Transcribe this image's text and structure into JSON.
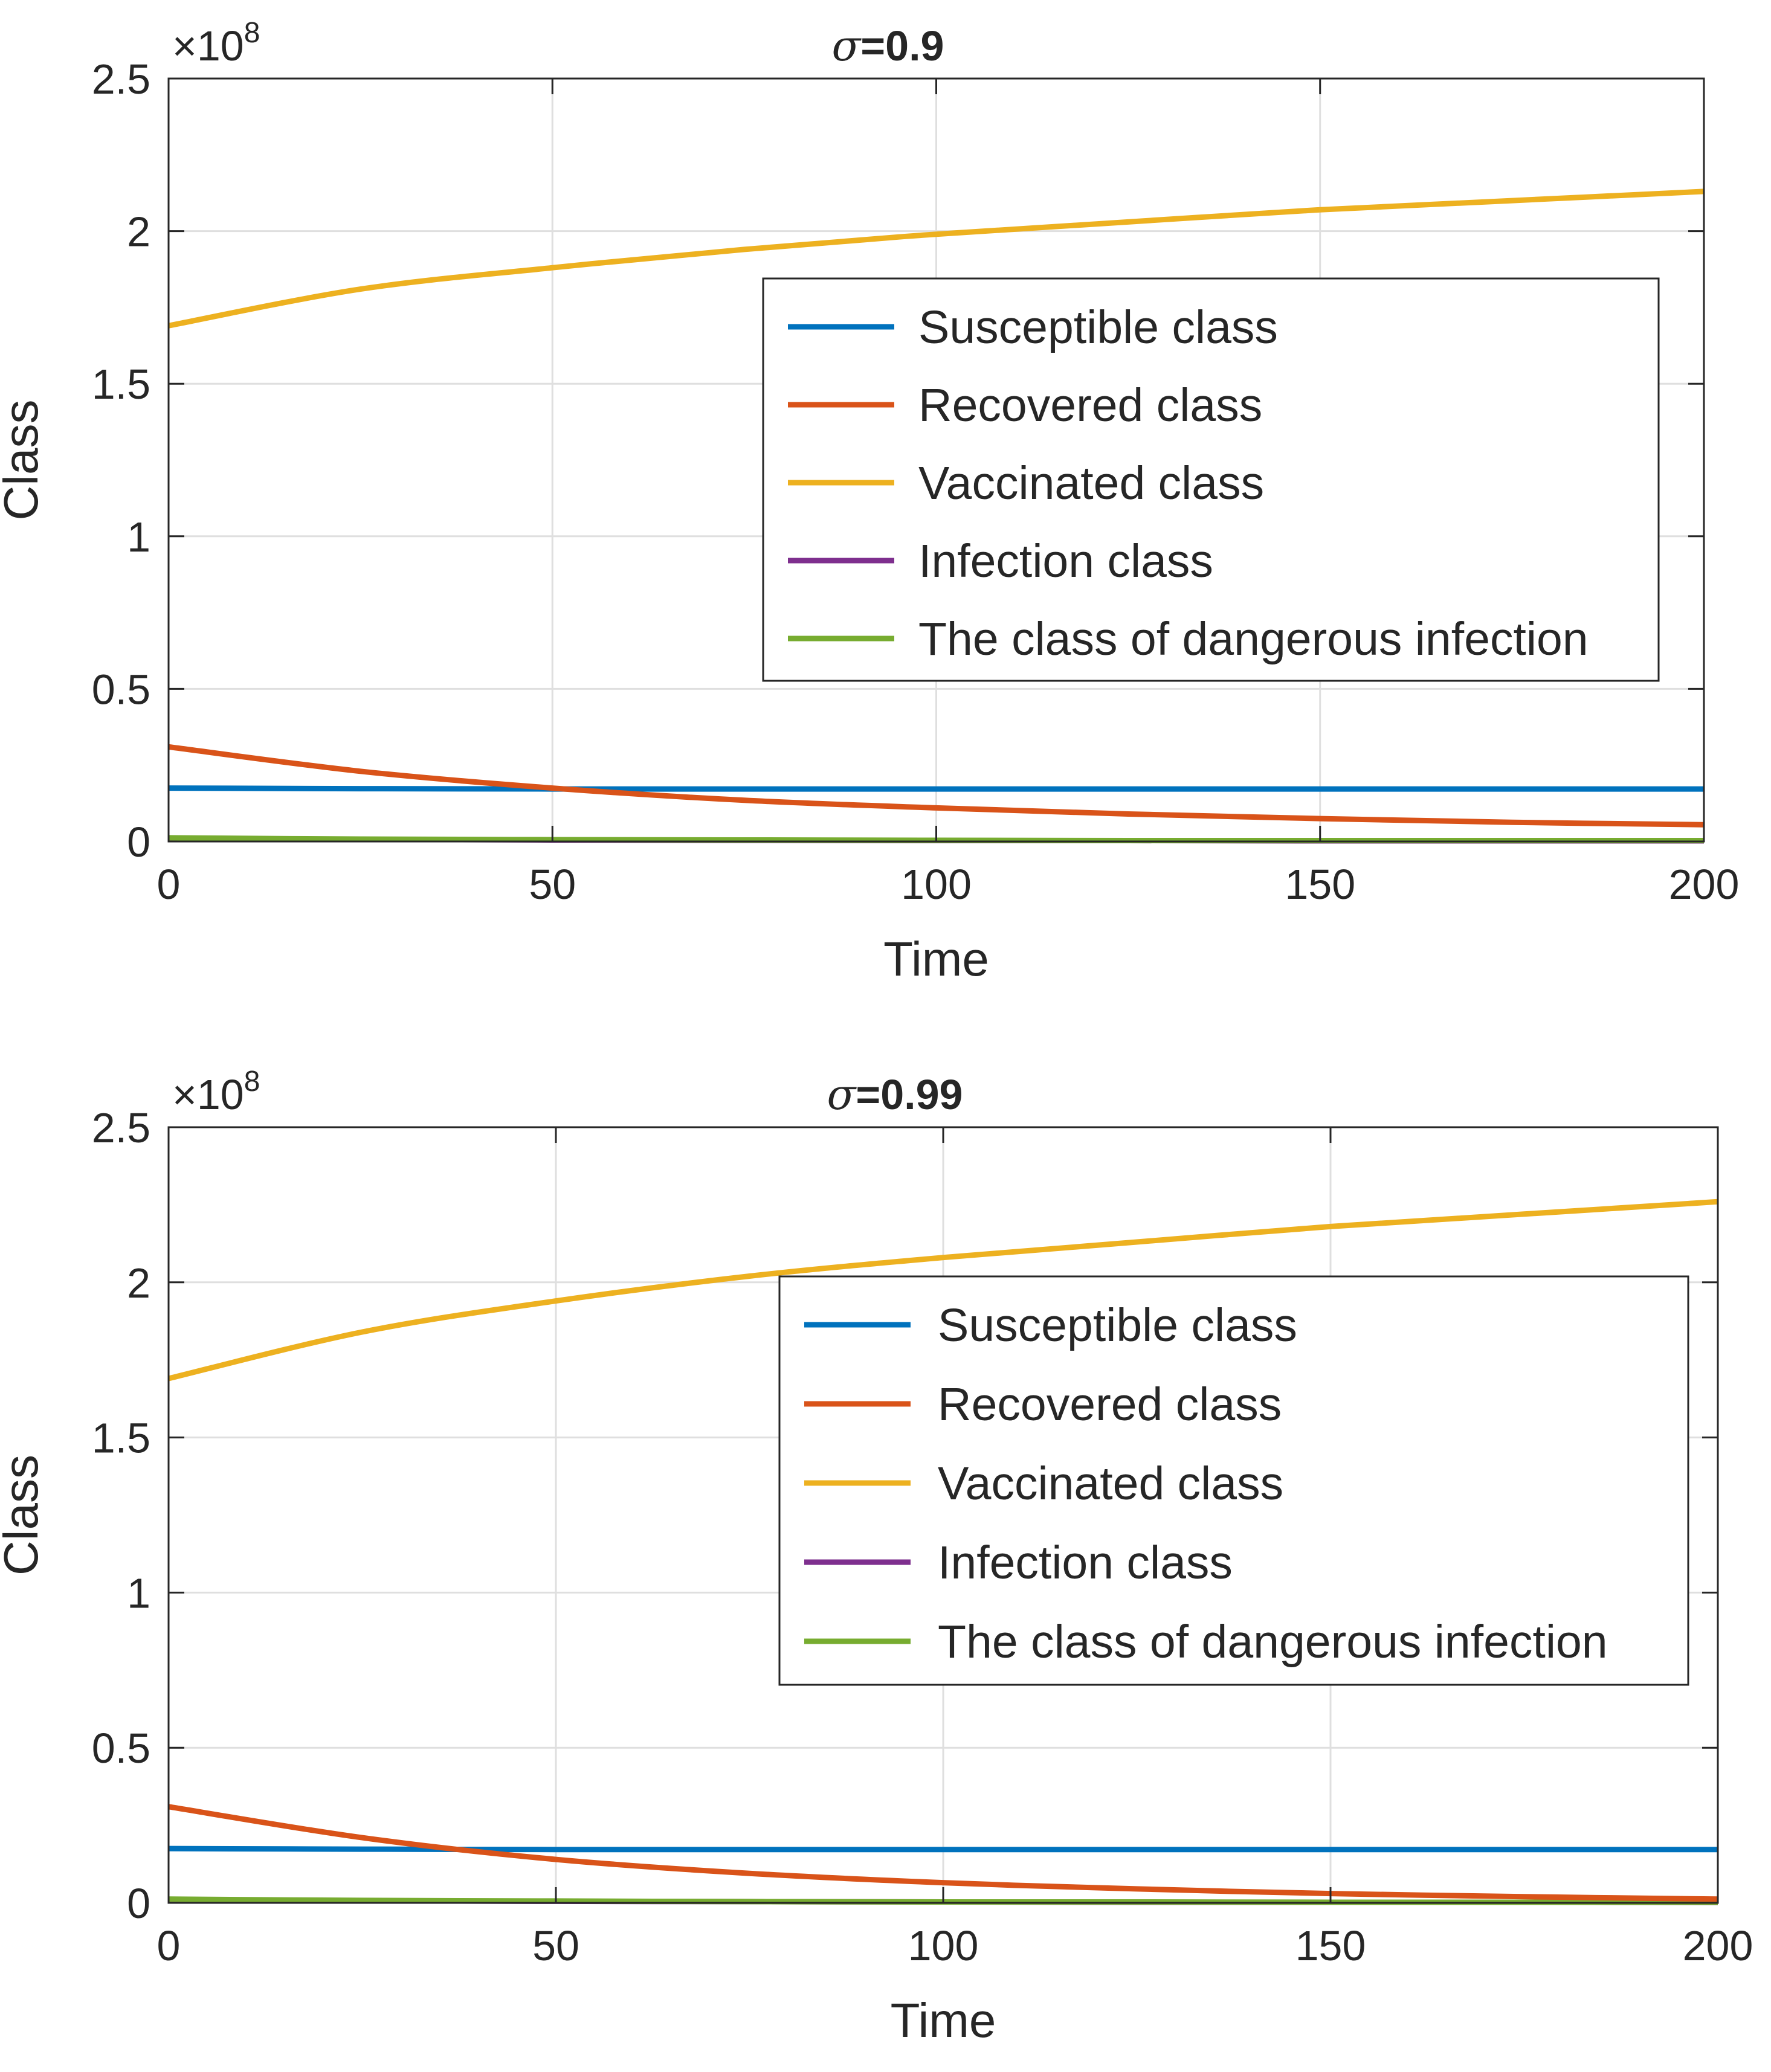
{
  "chart_data": [
    {
      "type": "line",
      "title_symbol": "σ",
      "title_value": "=0.9",
      "xlabel": "Time",
      "ylabel": "Class",
      "exponent_label": "×10",
      "exponent_value": "8",
      "xlim": [
        0,
        200
      ],
      "ylim": [
        0,
        2.5
      ],
      "xticks": [
        0,
        50,
        100,
        150,
        200
      ],
      "xtick_labels": [
        "0",
        "50",
        "100",
        "150",
        "200"
      ],
      "yticks": [
        0,
        0.5,
        1,
        1.5,
        2,
        2.5
      ],
      "ytick_labels": [
        "0",
        "0.5",
        "1",
        "1.5",
        "2",
        "2.5"
      ],
      "grid": true,
      "legend_position": "right",
      "x": [
        0,
        25,
        50,
        75,
        100,
        125,
        150,
        175,
        200
      ],
      "series": [
        {
          "name": "Susceptible class",
          "color": "#0072bd",
          "values": [
            0.175,
            0.173,
            0.172,
            0.172,
            0.172,
            0.172,
            0.172,
            0.172,
            0.172
          ]
        },
        {
          "name": "Recovered class",
          "color": "#d95319",
          "values": [
            0.31,
            0.23,
            0.175,
            0.135,
            0.11,
            0.09,
            0.075,
            0.063,
            0.055
          ]
        },
        {
          "name": "Vaccinated class",
          "color": "#edb120",
          "values": [
            1.69,
            1.81,
            1.88,
            1.94,
            1.99,
            2.03,
            2.07,
            2.1,
            2.13
          ]
        },
        {
          "name": "Infection class",
          "color": "#7e2f8e",
          "values": [
            0.01,
            0.007,
            0.005,
            0.004,
            0.003,
            0.003,
            0.002,
            0.002,
            0.002
          ]
        },
        {
          "name": "The class of dangerous infection",
          "color": "#77ac30",
          "values": [
            0.012,
            0.008,
            0.006,
            0.005,
            0.004,
            0.003,
            0.003,
            0.003,
            0.003
          ]
        }
      ]
    },
    {
      "type": "line",
      "title_symbol": "σ",
      "title_value": "=0.99",
      "xlabel": "Time",
      "ylabel": "Class",
      "exponent_label": "×10",
      "exponent_value": "8",
      "xlim": [
        0,
        200
      ],
      "ylim": [
        0,
        2.5
      ],
      "xticks": [
        0,
        50,
        100,
        150,
        200
      ],
      "xtick_labels": [
        "0",
        "50",
        "100",
        "150",
        "200"
      ],
      "yticks": [
        0,
        0.5,
        1,
        1.5,
        2,
        2.5
      ],
      "ytick_labels": [
        "0",
        "0.5",
        "1",
        "1.5",
        "2",
        "2.5"
      ],
      "grid": true,
      "legend_position": "right",
      "x": [
        0,
        25,
        50,
        75,
        100,
        125,
        150,
        175,
        200
      ],
      "series": [
        {
          "name": "Susceptible class",
          "color": "#0072bd",
          "values": [
            0.175,
            0.173,
            0.172,
            0.172,
            0.172,
            0.172,
            0.172,
            0.172,
            0.172
          ]
        },
        {
          "name": "Recovered class",
          "color": "#d95319",
          "values": [
            0.31,
            0.21,
            0.14,
            0.095,
            0.065,
            0.045,
            0.03,
            0.02,
            0.012
          ]
        },
        {
          "name": "Vaccinated class",
          "color": "#edb120",
          "values": [
            1.69,
            1.84,
            1.94,
            2.02,
            2.08,
            2.13,
            2.18,
            2.22,
            2.26
          ]
        },
        {
          "name": "Infection class",
          "color": "#7e2f8e",
          "values": [
            0.01,
            0.007,
            0.005,
            0.004,
            0.003,
            0.002,
            0.002,
            0.002,
            0.001
          ]
        },
        {
          "name": "The class of dangerous infection",
          "color": "#77ac30",
          "values": [
            0.012,
            0.008,
            0.006,
            0.004,
            0.003,
            0.003,
            0.002,
            0.002,
            0.002
          ]
        }
      ]
    }
  ]
}
